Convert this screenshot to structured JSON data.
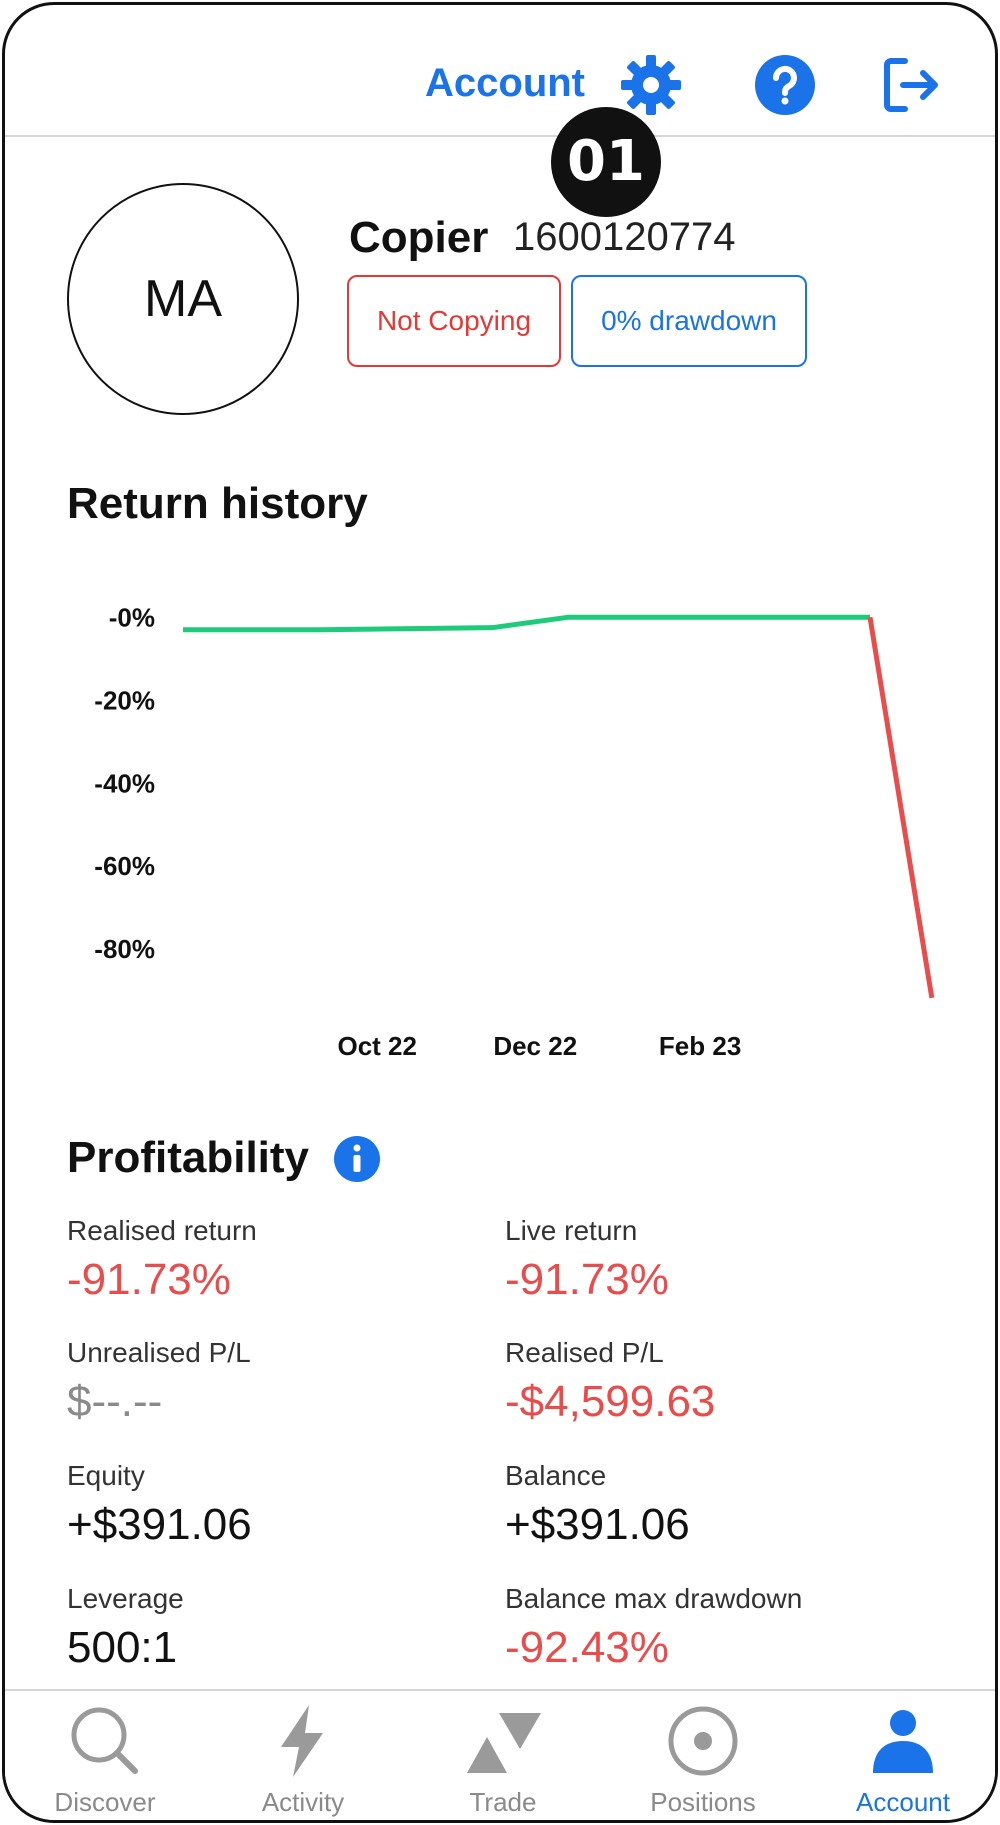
{
  "header": {
    "title": "Account",
    "icons": [
      "gear-icon",
      "help-icon",
      "logout-icon"
    ],
    "step_badge": "01"
  },
  "profile": {
    "initials": "MA",
    "role": "Copier",
    "account_id": "1600120774",
    "status_tag": "Not Copying",
    "drawdown_tag": "0% drawdown"
  },
  "return_history": {
    "title": "Return history"
  },
  "chart_data": {
    "type": "line",
    "title": "",
    "xlabel": "",
    "ylabel": "",
    "y_tick_labels": [
      "-0%",
      "-20%",
      "-40%",
      "-60%",
      "-80%"
    ],
    "x_tick_labels": [
      "Oct 22",
      "Dec 22",
      "Feb 23"
    ],
    "ylim": [
      -92,
      2
    ],
    "series": [
      {
        "color": "#1ecb7b",
        "points": [
          [
            0,
            -3
          ],
          [
            0.2,
            -3
          ],
          [
            0.45,
            -2.5
          ],
          [
            0.56,
            0
          ],
          [
            1.0,
            0
          ]
        ]
      },
      {
        "color": "#ea4b4b",
        "points": [
          [
            1.0,
            0
          ],
          [
            1.09,
            -91.73
          ]
        ]
      }
    ],
    "grid": false,
    "legend": "none"
  },
  "profitability": {
    "title": "Profitability",
    "info_icon": "info-icon",
    "metrics": [
      {
        "label": "Realised return",
        "value": "-91.73%",
        "tone": "neg"
      },
      {
        "label": "Live return",
        "value": "-91.73%",
        "tone": "neg"
      },
      {
        "label": "Unrealised P/L",
        "value": "$--.--",
        "tone": "muted"
      },
      {
        "label": "Realised P/L",
        "value": "-$4,599.63",
        "tone": "neg"
      },
      {
        "label": "Equity",
        "value": "+$391.06",
        "tone": "plain"
      },
      {
        "label": "Balance",
        "value": "+$391.06",
        "tone": "plain"
      },
      {
        "label": "Leverage",
        "value": "500:1",
        "tone": "plain"
      },
      {
        "label": "Balance max drawdown",
        "value": "-92.43%",
        "tone": "neg"
      }
    ]
  },
  "tabs": [
    {
      "label": "Discover",
      "icon": "search-icon",
      "active": false
    },
    {
      "label": "Activity",
      "icon": "bolt-icon",
      "active": false
    },
    {
      "label": "Trade",
      "icon": "trade-icon",
      "active": false
    },
    {
      "label": "Positions",
      "icon": "target-icon",
      "active": false
    },
    {
      "label": "Account",
      "icon": "person-icon",
      "active": true
    }
  ],
  "colors": {
    "accent": "#1a73e8",
    "negative": "#ea4b4b",
    "positive": "#1ecb7b",
    "muted": "#8a8a8a"
  }
}
